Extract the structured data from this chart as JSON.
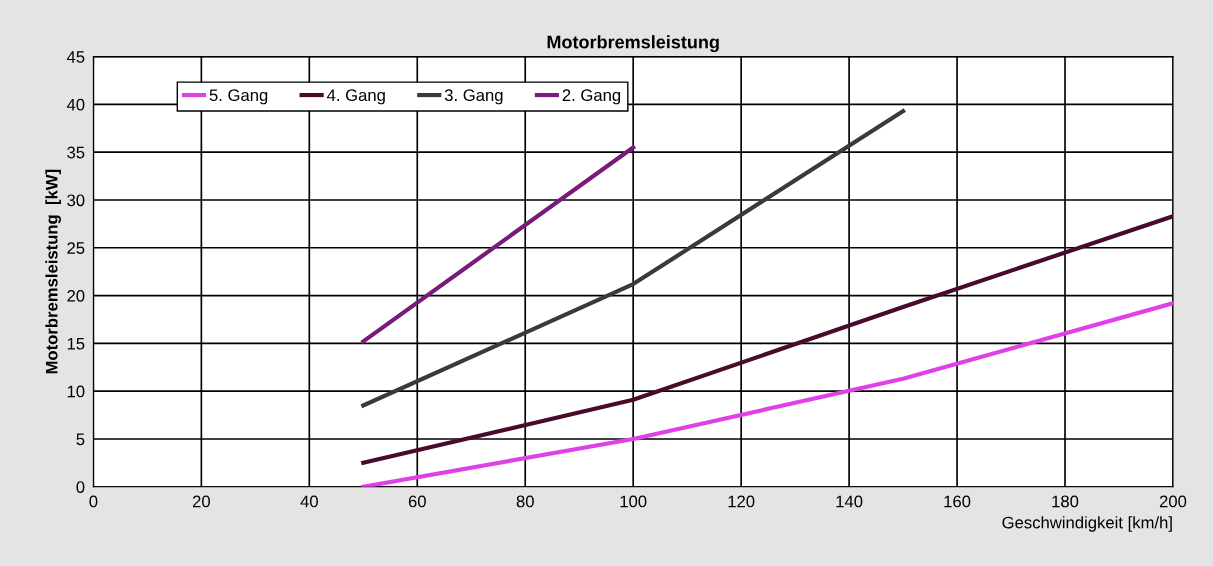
{
  "chart_data": {
    "type": "line",
    "title": "Motorbremsleistung",
    "xlabel": "Geschwindigkeit [km/h]",
    "ylabel": "Motorbremsleistung  [kW]",
    "xlim": [
      0,
      200
    ],
    "xticks": [
      0,
      20,
      40,
      60,
      80,
      100,
      120,
      140,
      160,
      180,
      200
    ],
    "ylim": [
      0,
      45
    ],
    "yticks": [
      0,
      5,
      10,
      15,
      20,
      25,
      30,
      35,
      40,
      45
    ],
    "grid": true,
    "legend": "top left",
    "line_style": "solid",
    "marker": "none",
    "series": [
      {
        "name": "5. Gang",
        "color": "#e040e8",
        "x": [
          50,
          100,
          150,
          200
        ],
        "values": [
          0,
          5,
          11.3,
          19.2
        ]
      },
      {
        "name": "4. Gang",
        "color": "#4a0a2a",
        "x": [
          50,
          100,
          150,
          200
        ],
        "values": [
          2.5,
          9.1,
          18.8,
          28.3
        ]
      },
      {
        "name": "3. Gang",
        "color": "#3a3a3a",
        "x": [
          50,
          100,
          150
        ],
        "values": [
          8.5,
          21.2,
          39.3
        ]
      },
      {
        "name": "2. Gang",
        "color": "#7a1a7a",
        "x": [
          50,
          100
        ],
        "values": [
          15.2,
          35.5
        ]
      }
    ]
  }
}
